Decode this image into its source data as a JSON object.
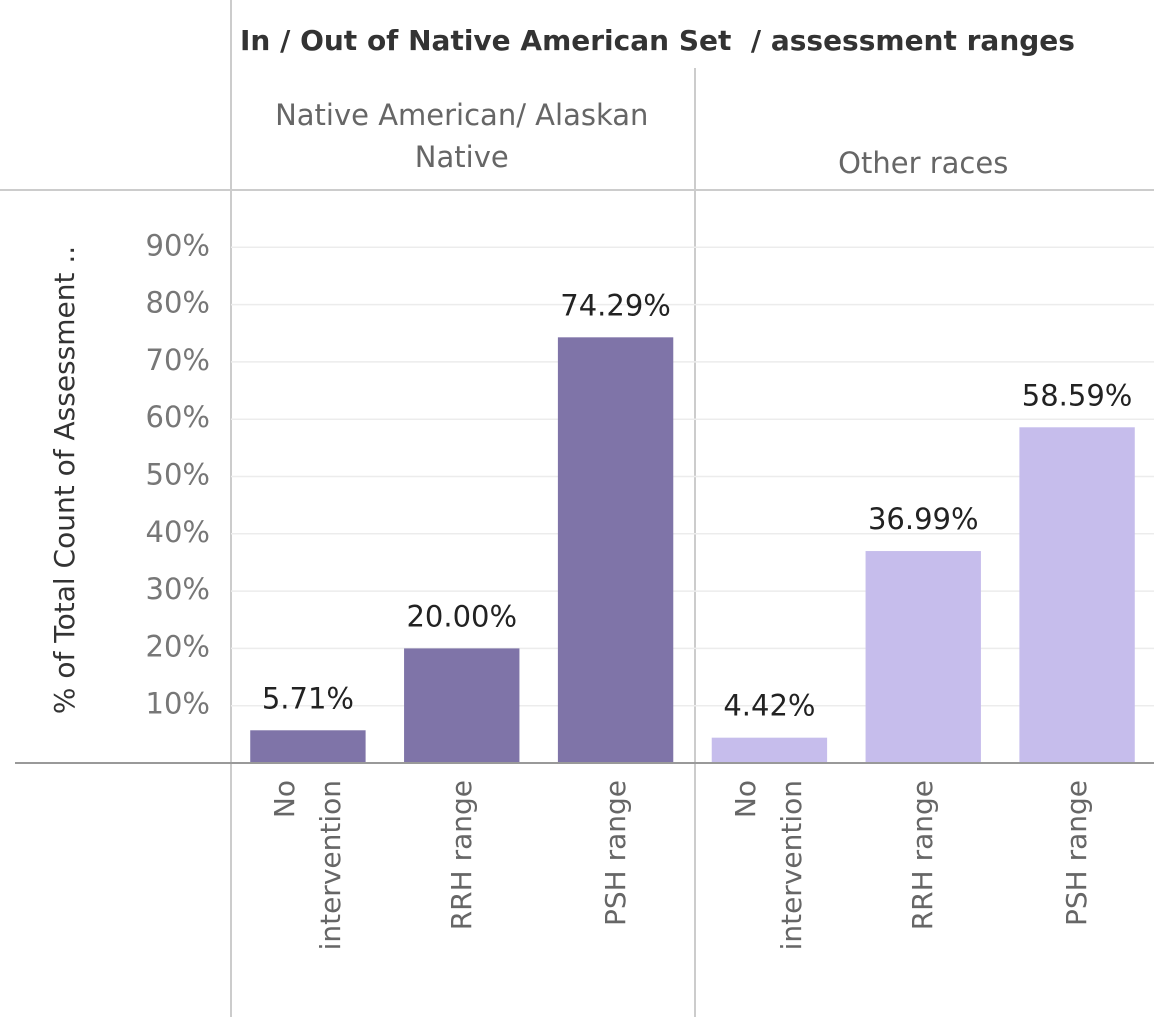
{
  "chart_data": {
    "type": "bar",
    "title": "In / Out of Native American Set  / assessment ranges",
    "y_label": "% of Total Count of Assessment ..",
    "ylim": [
      0,
      100
    ],
    "yticks": [
      {
        "value": 10,
        "label": "10%"
      },
      {
        "value": 20,
        "label": "20%"
      },
      {
        "value": 30,
        "label": "30%"
      },
      {
        "value": 40,
        "label": "40%"
      },
      {
        "value": 50,
        "label": "50%"
      },
      {
        "value": 60,
        "label": "60%"
      },
      {
        "value": 70,
        "label": "70%"
      },
      {
        "value": 80,
        "label": "80%"
      },
      {
        "value": 90,
        "label": "90%"
      }
    ],
    "grid": true,
    "panels": [
      {
        "name": "Native American/ Alaskan Native",
        "color": "#7f74a8",
        "categories": [
          "No intervention",
          "RRH range",
          "PSH range"
        ],
        "values": [
          5.71,
          20.0,
          74.29
        ],
        "value_labels": [
          "5.71%",
          "20.00%",
          "74.29%"
        ]
      },
      {
        "name": "Other races",
        "color": "#c6bdec",
        "categories": [
          "No intervention",
          "RRH range",
          "PSH range"
        ],
        "values": [
          4.42,
          36.99,
          58.59
        ],
        "value_labels": [
          "4.42%",
          "36.99%",
          "58.59%"
        ]
      }
    ]
  }
}
